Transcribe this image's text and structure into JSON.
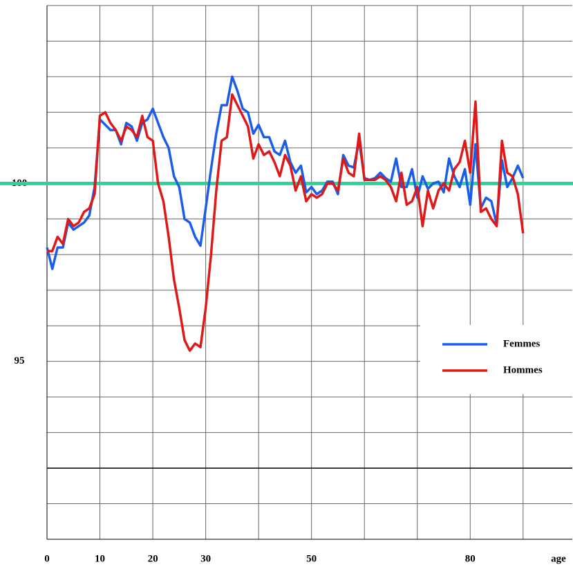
{
  "chart_data": {
    "type": "line",
    "x_label": "age",
    "x": [
      0,
      1,
      2,
      3,
      4,
      5,
      6,
      7,
      8,
      9,
      10,
      11,
      12,
      13,
      14,
      15,
      16,
      17,
      18,
      19,
      20,
      21,
      22,
      23,
      24,
      25,
      26,
      27,
      28,
      29,
      30,
      31,
      32,
      33,
      34,
      35,
      36,
      37,
      38,
      39,
      40,
      41,
      42,
      43,
      44,
      45,
      46,
      47,
      48,
      49,
      50,
      51,
      52,
      53,
      54,
      55,
      56,
      57,
      58,
      59,
      60,
      61,
      62,
      63,
      64,
      65,
      66,
      67,
      68,
      69,
      70,
      71,
      72,
      73,
      74,
      75,
      76,
      77,
      78,
      79,
      80,
      81,
      82,
      83,
      84,
      85,
      86,
      87,
      88,
      89,
      90
    ],
    "series": [
      {
        "name": "Femmes",
        "color": "#1a5ee8",
        "values": [
          98.2,
          97.6,
          98.2,
          98.2,
          98.9,
          98.7,
          98.8,
          98.9,
          99.1,
          99.9,
          101.8,
          101.65,
          101.5,
          101.5,
          101.1,
          101.7,
          101.6,
          101.2,
          101.7,
          101.8,
          102.1,
          101.7,
          101.3,
          101.0,
          100.2,
          99.9,
          99.0,
          98.9,
          98.5,
          98.25,
          99.3,
          100.4,
          101.4,
          102.2,
          102.2,
          103.0,
          102.6,
          102.1,
          102.0,
          101.4,
          101.65,
          101.3,
          101.3,
          100.9,
          100.8,
          101.2,
          100.6,
          100.3,
          100.5,
          99.75,
          99.9,
          99.7,
          99.8,
          100.05,
          100.05,
          99.7,
          100.8,
          100.5,
          100.45,
          101.2,
          100.15,
          100.1,
          100.15,
          100.3,
          100.15,
          100.05,
          100.7,
          99.9,
          99.9,
          100.4,
          99.6,
          100.2,
          99.85,
          100,
          100.05,
          99.75,
          100.7,
          100.2,
          99.9,
          100.4,
          99.4,
          101.1,
          99.3,
          99.6,
          99.5,
          98.85,
          100.65,
          99.9,
          100.15,
          100.5,
          100.15
        ]
      },
      {
        "name": "Hommes",
        "color": "#e01818",
        "values": [
          98.1,
          98.1,
          98.5,
          98.3,
          99.0,
          98.8,
          98.9,
          99.2,
          99.3,
          99.7,
          101.9,
          102.0,
          101.7,
          101.5,
          101.2,
          101.6,
          101.5,
          101.3,
          101.9,
          101.3,
          101.2,
          100.0,
          99.5,
          98.5,
          97.3,
          96.5,
          95.6,
          95.3,
          95.5,
          95.4,
          96.5,
          98.0,
          99.8,
          101.2,
          101.3,
          102.5,
          102.2,
          101.9,
          101.6,
          100.7,
          101.1,
          100.8,
          100.9,
          100.6,
          100.2,
          100.8,
          100.5,
          99.8,
          100.2,
          99.5,
          99.7,
          99.6,
          99.7,
          100.0,
          100.0,
          99.8,
          100.7,
          100.3,
          100.2,
          101.4,
          100.1,
          100.1,
          100.1,
          100.2,
          100.1,
          99.9,
          99.5,
          100.3,
          99.4,
          99.5,
          99.9,
          98.8,
          99.8,
          99.3,
          99.8,
          100.0,
          99.8,
          100.4,
          100.6,
          101.2,
          100.3,
          102.3,
          99.2,
          99.3,
          99.0,
          98.8,
          101.2,
          100.3,
          100.2,
          99.7,
          98.6
        ]
      }
    ],
    "xlim": [
      0,
      99.3
    ],
    "xticks": [
      0,
      10,
      20,
      30,
      50,
      80
    ],
    "xgrid": [
      0,
      10,
      20,
      30,
      40,
      50,
      60,
      70,
      80,
      90
    ],
    "ylim": [
      90,
      105
    ],
    "yticks": [
      95,
      100
    ],
    "ygrid": [
      90,
      91,
      92,
      93,
      94,
      95,
      96,
      97,
      98,
      99,
      100,
      101,
      102,
      103,
      104,
      105
    ],
    "axis_line": 92,
    "reference_line": 100,
    "reference_color": "#2dd39b",
    "grid": true,
    "legend": "lower right"
  }
}
